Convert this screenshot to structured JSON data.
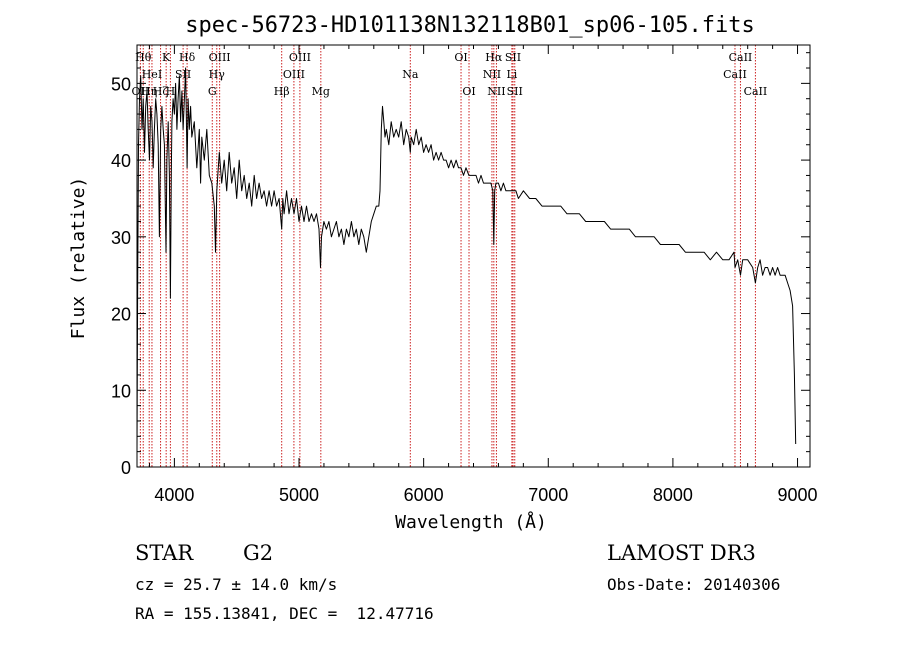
{
  "chart_data": {
    "type": "line",
    "title": "spec-56723-HD101138N132118B01_sp06-105.fits",
    "xlabel": "Wavelength (Å)",
    "ylabel": "Flux (relative)",
    "xlim": [
      3700,
      9100
    ],
    "ylim": [
      0,
      55
    ],
    "x_ticks": [
      4000,
      5000,
      6000,
      7000,
      8000,
      9000
    ],
    "y_ticks": [
      0,
      10,
      20,
      30,
      40,
      50
    ],
    "grid": false,
    "series": [
      {
        "name": "flux",
        "points": [
          [
            3700,
            2
          ],
          [
            3705,
            22
          ],
          [
            3712,
            42
          ],
          [
            3720,
            48
          ],
          [
            3730,
            51
          ],
          [
            3740,
            44
          ],
          [
            3750,
            48
          ],
          [
            3760,
            41
          ],
          [
            3770,
            47
          ],
          [
            3780,
            49
          ],
          [
            3790,
            44
          ],
          [
            3800,
            40
          ],
          [
            3810,
            47
          ],
          [
            3820,
            45
          ],
          [
            3830,
            39
          ],
          [
            3840,
            44
          ],
          [
            3850,
            48
          ],
          [
            3860,
            46
          ],
          [
            3870,
            42
          ],
          [
            3880,
            30
          ],
          [
            3890,
            44
          ],
          [
            3900,
            47
          ],
          [
            3910,
            44
          ],
          [
            3920,
            42
          ],
          [
            3933,
            28
          ],
          [
            3940,
            40
          ],
          [
            3950,
            45
          ],
          [
            3960,
            38
          ],
          [
            3968,
            22
          ],
          [
            3975,
            38
          ],
          [
            3980,
            45
          ],
          [
            3990,
            48
          ],
          [
            4000,
            46
          ],
          [
            4010,
            50
          ],
          [
            4020,
            44
          ],
          [
            4030,
            48
          ],
          [
            4040,
            51
          ],
          [
            4050,
            45
          ],
          [
            4060,
            49
          ],
          [
            4070,
            44
          ],
          [
            4080,
            48
          ],
          [
            4090,
            52
          ],
          [
            4102,
            39
          ],
          [
            4110,
            48
          ],
          [
            4120,
            44
          ],
          [
            4130,
            47
          ],
          [
            4140,
            43
          ],
          [
            4160,
            45
          ],
          [
            4180,
            39
          ],
          [
            4200,
            44
          ],
          [
            4210,
            37
          ],
          [
            4220,
            43
          ],
          [
            4240,
            40
          ],
          [
            4260,
            44
          ],
          [
            4280,
            38
          ],
          [
            4300,
            37
          ],
          [
            4320,
            34
          ],
          [
            4330,
            28
          ],
          [
            4340,
            36
          ],
          [
            4360,
            41
          ],
          [
            4380,
            37
          ],
          [
            4400,
            40
          ],
          [
            4420,
            36
          ],
          [
            4440,
            41
          ],
          [
            4460,
            37
          ],
          [
            4480,
            39
          ],
          [
            4500,
            35
          ],
          [
            4520,
            40
          ],
          [
            4540,
            36
          ],
          [
            4560,
            38
          ],
          [
            4580,
            35
          ],
          [
            4600,
            37
          ],
          [
            4620,
            34
          ],
          [
            4640,
            38
          ],
          [
            4660,
            35
          ],
          [
            4680,
            37
          ],
          [
            4700,
            35
          ],
          [
            4720,
            36
          ],
          [
            4740,
            34
          ],
          [
            4760,
            36
          ],
          [
            4780,
            34
          ],
          [
            4800,
            36
          ],
          [
            4820,
            34
          ],
          [
            4840,
            35
          ],
          [
            4861,
            31
          ],
          [
            4870,
            35
          ],
          [
            4880,
            33
          ],
          [
            4900,
            36
          ],
          [
            4920,
            33
          ],
          [
            4940,
            35
          ],
          [
            4960,
            33
          ],
          [
            4980,
            35
          ],
          [
            5000,
            32
          ],
          [
            5020,
            34
          ],
          [
            5040,
            32
          ],
          [
            5060,
            34
          ],
          [
            5080,
            32
          ],
          [
            5100,
            33
          ],
          [
            5120,
            32
          ],
          [
            5140,
            33
          ],
          [
            5160,
            31
          ],
          [
            5172,
            26
          ],
          [
            5180,
            30
          ],
          [
            5200,
            32
          ],
          [
            5220,
            31
          ],
          [
            5240,
            32
          ],
          [
            5260,
            30
          ],
          [
            5280,
            31
          ],
          [
            5300,
            32
          ],
          [
            5320,
            30
          ],
          [
            5340,
            31
          ],
          [
            5360,
            29
          ],
          [
            5380,
            31
          ],
          [
            5400,
            30
          ],
          [
            5420,
            32
          ],
          [
            5440,
            30
          ],
          [
            5460,
            31
          ],
          [
            5480,
            29
          ],
          [
            5500,
            31
          ],
          [
            5520,
            30
          ],
          [
            5540,
            28
          ],
          [
            5560,
            30
          ],
          [
            5580,
            32
          ],
          [
            5600,
            33
          ],
          [
            5620,
            34
          ],
          [
            5640,
            34
          ],
          [
            5650,
            36
          ],
          [
            5660,
            44
          ],
          [
            5670,
            47
          ],
          [
            5680,
            45
          ],
          [
            5690,
            43
          ],
          [
            5700,
            44
          ],
          [
            5720,
            42
          ],
          [
            5740,
            45
          ],
          [
            5760,
            43
          ],
          [
            5780,
            44
          ],
          [
            5800,
            43
          ],
          [
            5820,
            45
          ],
          [
            5840,
            42
          ],
          [
            5860,
            44
          ],
          [
            5880,
            43
          ],
          [
            5893,
            41
          ],
          [
            5900,
            43
          ],
          [
            5920,
            42
          ],
          [
            5940,
            44
          ],
          [
            5960,
            42
          ],
          [
            5980,
            43
          ],
          [
            6000,
            41
          ],
          [
            6020,
            42
          ],
          [
            6040,
            41
          ],
          [
            6060,
            42
          ],
          [
            6080,
            40
          ],
          [
            6100,
            41
          ],
          [
            6120,
            40
          ],
          [
            6140,
            41
          ],
          [
            6160,
            40
          ],
          [
            6180,
            40
          ],
          [
            6200,
            39
          ],
          [
            6220,
            40
          ],
          [
            6240,
            39
          ],
          [
            6260,
            40
          ],
          [
            6280,
            39
          ],
          [
            6300,
            39
          ],
          [
            6320,
            38
          ],
          [
            6340,
            39
          ],
          [
            6363,
            38
          ],
          [
            6380,
            38
          ],
          [
            6400,
            38
          ],
          [
            6420,
            38
          ],
          [
            6440,
            37
          ],
          [
            6460,
            38
          ],
          [
            6480,
            37
          ],
          [
            6500,
            37
          ],
          [
            6520,
            37
          ],
          [
            6540,
            37
          ],
          [
            6555,
            36
          ],
          [
            6563,
            29
          ],
          [
            6570,
            36
          ],
          [
            6580,
            37
          ],
          [
            6600,
            37
          ],
          [
            6620,
            36
          ],
          [
            6640,
            37
          ],
          [
            6660,
            36
          ],
          [
            6680,
            36
          ],
          [
            6700,
            36
          ],
          [
            6720,
            36
          ],
          [
            6740,
            36
          ],
          [
            6760,
            35
          ],
          [
            6800,
            36
          ],
          [
            6850,
            35
          ],
          [
            6900,
            35
          ],
          [
            6950,
            34
          ],
          [
            7000,
            34
          ],
          [
            7050,
            34
          ],
          [
            7100,
            34
          ],
          [
            7150,
            33
          ],
          [
            7200,
            33
          ],
          [
            7250,
            33
          ],
          [
            7300,
            32
          ],
          [
            7350,
            32
          ],
          [
            7400,
            32
          ],
          [
            7450,
            32
          ],
          [
            7500,
            31
          ],
          [
            7550,
            31
          ],
          [
            7600,
            31
          ],
          [
            7650,
            31
          ],
          [
            7700,
            30
          ],
          [
            7750,
            30
          ],
          [
            7800,
            30
          ],
          [
            7850,
            30
          ],
          [
            7900,
            29
          ],
          [
            7950,
            29
          ],
          [
            8000,
            29
          ],
          [
            8050,
            29
          ],
          [
            8100,
            28
          ],
          [
            8150,
            28
          ],
          [
            8200,
            28
          ],
          [
            8250,
            28
          ],
          [
            8300,
            27
          ],
          [
            8350,
            28
          ],
          [
            8400,
            27
          ],
          [
            8450,
            27
          ],
          [
            8490,
            28
          ],
          [
            8498,
            26
          ],
          [
            8520,
            27
          ],
          [
            8542,
            25
          ],
          [
            8560,
            27
          ],
          [
            8600,
            27
          ],
          [
            8640,
            26
          ],
          [
            8662,
            24
          ],
          [
            8680,
            26
          ],
          [
            8700,
            27
          ],
          [
            8720,
            25
          ],
          [
            8740,
            26
          ],
          [
            8760,
            26
          ],
          [
            8780,
            25
          ],
          [
            8800,
            26
          ],
          [
            8820,
            25
          ],
          [
            8840,
            26
          ],
          [
            8860,
            25
          ],
          [
            8880,
            25
          ],
          [
            8900,
            25
          ],
          [
            8920,
            24
          ],
          [
            8940,
            23
          ],
          [
            8960,
            21
          ],
          [
            8975,
            12
          ],
          [
            8985,
            3
          ]
        ]
      }
    ],
    "line_markers": [
      {
        "wavelength": 3727,
        "label": "OII",
        "row": 3
      },
      {
        "wavelength": 3750,
        "label": "Hθ",
        "row": 1
      },
      {
        "wavelength": 3798,
        "label": "Hη",
        "row": 3
      },
      {
        "wavelength": 3820,
        "label": "HeI",
        "row": 2
      },
      {
        "wavelength": 3889,
        "label": "Hζ",
        "row": 3
      },
      {
        "wavelength": 3934,
        "label": "K",
        "row": 1
      },
      {
        "wavelength": 3968,
        "label": "H",
        "row": 3
      },
      {
        "wavelength": 4070,
        "label": "SII",
        "row": 2
      },
      {
        "wavelength": 4102,
        "label": "Hδ",
        "row": 1
      },
      {
        "wavelength": 4304,
        "label": "G",
        "row": 3
      },
      {
        "wavelength": 4340,
        "label": "Hγ",
        "row": 2
      },
      {
        "wavelength": 4363,
        "label": "OIII",
        "row": 1
      },
      {
        "wavelength": 4861,
        "label": "Hβ",
        "row": 3
      },
      {
        "wavelength": 4959,
        "label": "OIII",
        "row": 2
      },
      {
        "wavelength": 5007,
        "label": "OIII",
        "row": 1
      },
      {
        "wavelength": 5175,
        "label": "Mg",
        "row": 3
      },
      {
        "wavelength": 5893,
        "label": "Na",
        "row": 2
      },
      {
        "wavelength": 6300,
        "label": "OI",
        "row": 1
      },
      {
        "wavelength": 6364,
        "label": "OI",
        "row": 3
      },
      {
        "wavelength": 6548,
        "label": "NII",
        "row": 2
      },
      {
        "wavelength": 6563,
        "label": "Hα",
        "row": 1
      },
      {
        "wavelength": 6584,
        "label": "NII",
        "row": 3
      },
      {
        "wavelength": 6708,
        "label": "Li",
        "row": 2
      },
      {
        "wavelength": 6717,
        "label": "SII",
        "row": 1
      },
      {
        "wavelength": 6731,
        "label": "SII",
        "row": 3
      },
      {
        "wavelength": 8498,
        "label": "CaII",
        "row": 2
      },
      {
        "wavelength": 8542,
        "label": "CaII",
        "row": 1
      },
      {
        "wavelength": 8662,
        "label": "CaII",
        "row": 3
      }
    ]
  },
  "footer": {
    "object_class": "STAR",
    "subclass": "G2",
    "survey": "LAMOST DR3",
    "redshift": "cz = 25.7 ± 14.0 km/s",
    "obs_date": "Obs-Date: 20140306",
    "coords": "RA = 155.13841, DEC =  12.47716"
  },
  "colors": {
    "spectrum": "#000000",
    "line_marker": "#cc2222",
    "axis": "#000000",
    "background": "#ffffff"
  }
}
